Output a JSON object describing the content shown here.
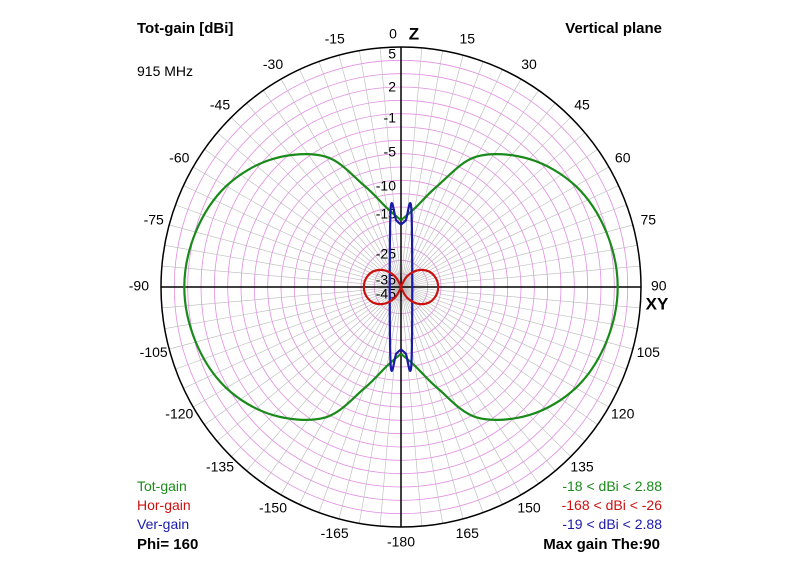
{
  "header": {
    "title": "Tot-gain [dBi]",
    "frequency": "915 MHz",
    "plane": "Vertical plane"
  },
  "footer": {
    "phi": "Phi= 160",
    "max_gain": "Max gain The:90"
  },
  "legend": [
    {
      "label": "Tot-gain",
      "range": "-18 < dBi < 2.88",
      "color": "#1a8a1a"
    },
    {
      "label": "Hor-gain",
      "range": "-168 < dBi < -26",
      "color": "#cc1111"
    },
    {
      "label": "Ver-gain",
      "range": "-19 < dBi < 2.88",
      "color": "#1a1aaa"
    }
  ],
  "axis_names": {
    "z": "Z",
    "xy": "XY"
  },
  "chart_data": {
    "type": "polar",
    "angle_unit": "degrees",
    "angle_labels_right": [
      "0",
      "15",
      "30",
      "45",
      "60",
      "75",
      "90",
      "105",
      "120",
      "135",
      "150",
      "165"
    ],
    "angle_labels_left": [
      "-15",
      "-30",
      "-45",
      "-60",
      "-75",
      "-90",
      "-105",
      "-120",
      "-135",
      "-150",
      "-165",
      "-180"
    ],
    "radial_labels": [
      "5",
      "2",
      "-1",
      "-5",
      "-10",
      "-15",
      "-25",
      "-35",
      "-45"
    ],
    "radial_label_values": [
      5,
      2,
      -1,
      -5,
      -10,
      -15,
      -25,
      -35,
      -45
    ],
    "series": [
      {
        "name": "Tot-gain",
        "color": "#1a8a1a",
        "points": [
          [
            0,
            -18
          ],
          [
            10,
            -15
          ],
          [
            20,
            -10
          ],
          [
            30,
            -4
          ],
          [
            45,
            -0.5
          ],
          [
            60,
            1.5
          ],
          [
            75,
            2.5
          ],
          [
            90,
            2.88
          ],
          [
            105,
            2.5
          ],
          [
            120,
            1.5
          ],
          [
            135,
            -0.5
          ],
          [
            150,
            -4
          ],
          [
            160,
            -10
          ],
          [
            170,
            -15
          ],
          [
            180,
            -18
          ]
        ]
      },
      {
        "name": "Ver-gain",
        "color": "#1a1aaa",
        "points": [
          [
            0,
            -19
          ],
          [
            4,
            -18
          ],
          [
            8,
            -16
          ],
          [
            172,
            -16
          ],
          [
            176,
            -18
          ],
          [
            180,
            -19
          ]
        ]
      },
      {
        "name": "Hor-gain",
        "color": "#cc1111",
        "points": [
          [
            0,
            -168
          ],
          [
            15,
            -44
          ],
          [
            30,
            -36
          ],
          [
            45,
            -31
          ],
          [
            60,
            -28
          ],
          [
            75,
            -26.5
          ],
          [
            90,
            -26
          ],
          [
            105,
            -26.5
          ],
          [
            120,
            -28
          ],
          [
            135,
            -31
          ],
          [
            150,
            -36
          ],
          [
            165,
            -44
          ],
          [
            180,
            -168
          ]
        ]
      }
    ]
  }
}
